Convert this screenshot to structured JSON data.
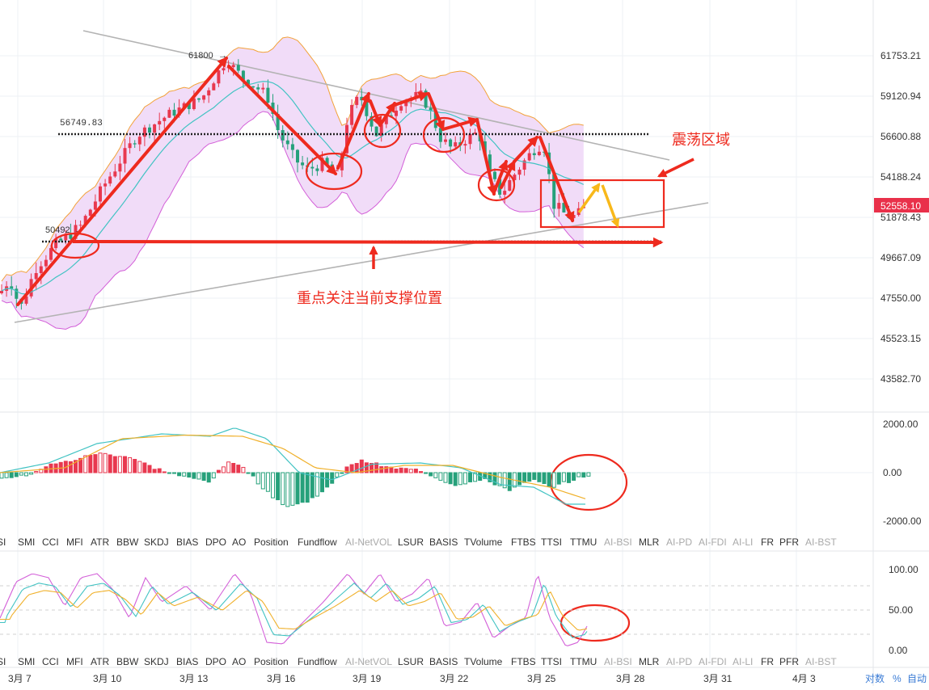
{
  "colors": {
    "up": "#e8384f",
    "down": "#26a17b",
    "band_fill": "#f1dcf8",
    "band_upper": "#f2a23a",
    "band_lower": "#d35fd8",
    "ma_fast": "#42c3c3",
    "ma_slow": "#f0b02a",
    "annot": "#ee2a1e",
    "annot_yellow": "#f8b81a",
    "trend": "#b3b3b3",
    "grid": "#eef1f4",
    "text": "#333333",
    "muted": "#a9a9a9",
    "pd_bg": "#e9304a",
    "link": "#3a7bd5"
  },
  "price_axis": {
    "labels": [
      "61753.21",
      "59120.94",
      "56600.88",
      "54188.24",
      "51878.43",
      "49667.09",
      "47550.00",
      "45523.15",
      "43582.70"
    ],
    "current_price": "52558.10"
  },
  "macd_axis": {
    "labels": [
      "2000.00",
      "0.00",
      "-2000.00"
    ]
  },
  "osc_axis": {
    "labels": [
      "100.00",
      "50.00",
      "0.00"
    ]
  },
  "indicator_tabs": [
    "SI",
    "SMI",
    "CCI",
    "MFI",
    "ATR",
    "BBW",
    "SKDJ",
    "BIAS",
    "DPO",
    "AO",
    "Position",
    "Fundflow",
    "AI-NetVOL",
    "LSUR",
    "BASIS",
    "TVolume",
    "FTBS",
    "TTSI",
    "TTMU",
    "AI-BSI",
    "MLR",
    "AI-PD",
    "AI-FDI",
    "AI-LI",
    "FR",
    "PFR",
    "AI-BST"
  ],
  "indicator_tabs_muted": [
    "AI-NetVOL",
    "AI-BSI",
    "AI-PD",
    "AI-FDI",
    "AI-LI",
    "AI-BST"
  ],
  "date_axis": [
    "3月 7",
    "3月 10",
    "3月 13",
    "3月 16",
    "3月 19",
    "3月 22",
    "3月 25",
    "3月 28",
    "3月 31",
    "4月 3"
  ],
  "footer": {
    "log": "对数",
    "pct": "%",
    "auto": "自动"
  },
  "annotations": {
    "high_label": "61800",
    "resistance_label": "56749.83",
    "support_label": "50492",
    "range_label": "震荡区域",
    "support_note": "重点关注当前支撑位置"
  },
  "chart_data": {
    "type": "candlestick",
    "x_dates": [
      "3月 7",
      "3月 10",
      "3月 13",
      "3月 16",
      "3月 19",
      "3月 22",
      "3月 25",
      "3月 28",
      "3月 31",
      "4月 3"
    ],
    "close_path_approx": [
      47100,
      48200,
      50500,
      53500,
      56800,
      58600,
      61500,
      60400,
      58500,
      56400,
      54200,
      55600,
      58400,
      57400,
      59000,
      56600,
      56900,
      55200,
      53800,
      54900,
      56700,
      53600,
      52558.1
    ],
    "levels": {
      "high": 61800,
      "resistance": 56749.83,
      "support": 50492,
      "current": 52558.1
    },
    "ylim": [
      43582.7,
      62600
    ],
    "macd_ylim": [
      -2000,
      2000
    ],
    "osc_ylim": [
      0,
      100
    ]
  }
}
